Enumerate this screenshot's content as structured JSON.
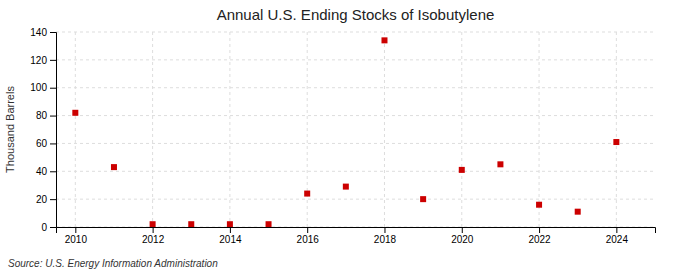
{
  "chart_data": {
    "type": "scatter",
    "title": "Annual U.S. Ending Stocks of Isobutylene",
    "y_label": "Thousand Barrels",
    "annotations": [
      "Source: U.S. Energy Information Administration"
    ],
    "x": [
      2010,
      2011,
      2012,
      2013,
      2014,
      2015,
      2016,
      2017,
      2018,
      2019,
      2020,
      2021,
      2022,
      2023,
      2024
    ],
    "values": [
      82,
      43,
      2,
      2,
      2,
      2,
      24,
      29,
      134,
      20,
      41,
      45,
      16,
      11,
      61
    ],
    "color": "#cc0000",
    "marker": "square",
    "xlim": [
      2009.5,
      2025.0
    ],
    "xticks": [
      2010,
      2012,
      2014,
      2016,
      2018,
      2020,
      2022,
      2024
    ],
    "ylim": [
      0,
      140
    ],
    "yticks": [
      0,
      20,
      40,
      60,
      80,
      100,
      120,
      140
    ],
    "grid": true
  }
}
